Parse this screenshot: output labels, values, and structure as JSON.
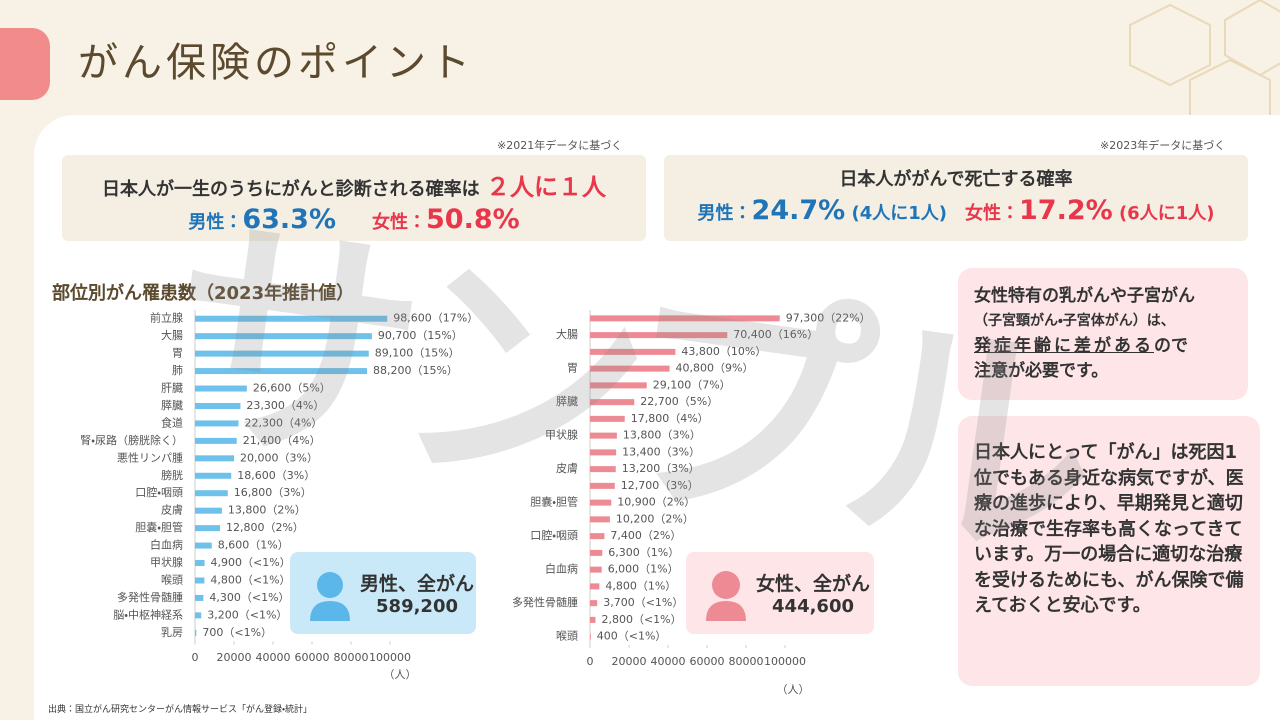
{
  "header": {
    "title": "がん保険のポイント"
  },
  "stats": [
    {
      "note": "※2021年データに基づく",
      "heading": "日本人が一生のうちにがんと診断される確率は",
      "highlight": "２人に１人",
      "male_label": "男性：",
      "male_value": "63.3%",
      "female_label": "女性：",
      "female_value": "50.8%"
    },
    {
      "note": "※2023年データに基づく",
      "heading": "日本人ががんで死亡する確率",
      "male_label": "男性：",
      "male_value": "24.7%",
      "male_ratio": "(4人に1人)",
      "female_label": "女性：",
      "female_value": "17.2%",
      "female_ratio": "(6人に1人)"
    }
  ],
  "chart_heading": "部位別がん罹患数（2023年推計値）",
  "chart_data": [
    {
      "type": "bar",
      "orientation": "horizontal",
      "color": "#6ec1ea",
      "x_unit": "（人）",
      "categories": [
        "前立腺",
        "大腸",
        "胃",
        "肺",
        "肝臓",
        "膵臓",
        "食道",
        "腎・尿路（膀胱除く）",
        "悪性リンパ腫",
        "膀胱",
        "口腔・咽頭",
        "皮膚",
        "胆嚢・胆管",
        "白血病",
        "甲状腺",
        "喉頭",
        "多発性骨髄腫",
        "脳・中枢神経系",
        "乳房"
      ],
      "values": [
        98600,
        90700,
        89100,
        88200,
        26600,
        23300,
        22300,
        21400,
        20000,
        18600,
        16800,
        13800,
        12800,
        8600,
        4900,
        4800,
        4300,
        3200,
        700
      ],
      "value_labels": [
        "98,600（17%）",
        "90,700（15%）",
        "89,100（15%）",
        "88,200（15%）",
        "26,600（5%）",
        "23,300（4%）",
        "22,300（4%）",
        "21,400（4%）",
        "20,000（3%）",
        "18,600（3%）",
        "16,800（3%）",
        "13,800（2%）",
        "12,800（2%）",
        "8,600（1%）",
        "4,900（<1%）",
        "4,800（<1%）",
        "4,300（<1%）",
        "3,200（<1%）",
        "700（<1%）"
      ],
      "xlim": [
        0,
        100000
      ],
      "xticks": [
        0,
        20000,
        40000,
        60000,
        80000,
        100000
      ],
      "callout": {
        "label": "男性、全がん",
        "total": "589,200"
      }
    },
    {
      "type": "bar",
      "orientation": "horizontal",
      "color": "#ee8a93",
      "x_unit": "（人）",
      "categories": [
        null,
        "大腸",
        null,
        "胃",
        null,
        "膵臓",
        null,
        "甲状腺",
        null,
        "皮膚",
        null,
        "胆嚢・胆管",
        null,
        "口腔・咽頭",
        null,
        "白血病",
        null,
        "多発性骨髄腫",
        null,
        "喉頭"
      ],
      "values": [
        97300,
        70400,
        43800,
        40800,
        29100,
        22700,
        17800,
        13800,
        13400,
        13200,
        12700,
        10900,
        10200,
        7400,
        6300,
        6000,
        4800,
        3700,
        2800,
        400
      ],
      "value_labels": [
        "97,300（22%）",
        "70,400（16%）",
        "43,800（10%）",
        "40,800（9%）",
        "29,100（7%）",
        "22,700（5%）",
        "17,800（4%）",
        "13,800（3%）",
        "13,400（3%）",
        "13,200（3%）",
        "12,700（3%）",
        "10,900（2%）",
        "10,200（2%）",
        "7,400（2%）",
        "6,300（1%）",
        "6,000（1%）",
        "4,800（1%）",
        "3,700（<1%）",
        "2,800（<1%）",
        "400（<1%）"
      ],
      "xlim": [
        0,
        100000
      ],
      "xticks": [
        0,
        20000,
        40000,
        60000,
        80000,
        100000
      ],
      "callout": {
        "label": "女性、全がん",
        "total": "444,600"
      }
    }
  ],
  "side": [
    {
      "lines": [
        "女性特有の乳がんや子宮がん",
        "（子宮頸がん・子宮体がん）は、",
        "発症年齢に差がある",
        "ので",
        "注意が必要です。"
      ]
    },
    {
      "text": "日本人にとって「がん」は死因1位でもある身近な病気ですが、医療の進歩により、早期発見と適切な治療で生存率も高くなってきています。万一の場合に適切な治療を受けるためにも、がん保険で備えておくと安心です。"
    }
  ],
  "watermark": "サンプル",
  "source": "出典：国立がん研究センターがん情報サービス「がん登録・統計」"
}
